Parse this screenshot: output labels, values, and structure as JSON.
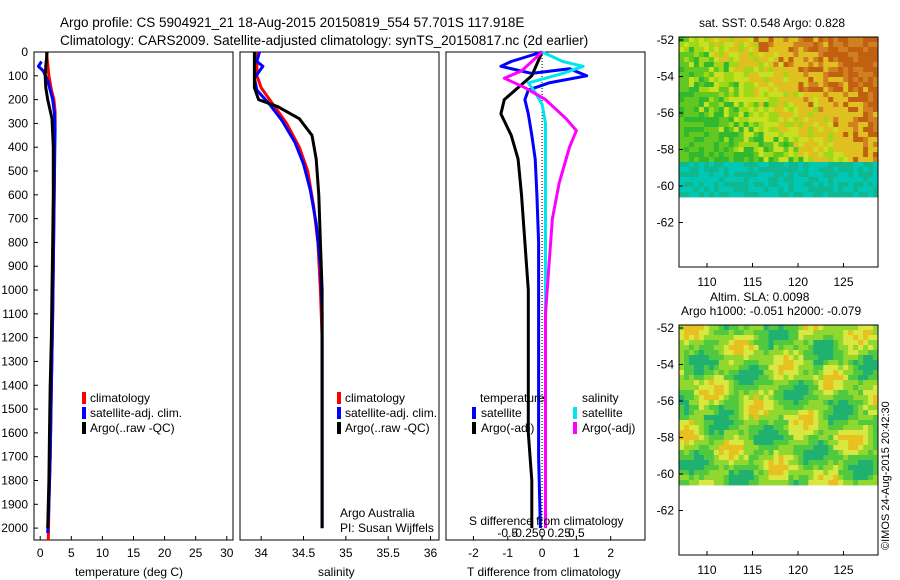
{
  "header": {
    "line1": "Argo profile: CS 5904921_21 18-Aug-2015 20150819_554 57.701S 117.918E",
    "line2": "Climatology: CARS2009. Satellite-adjusted climatology: synTS_20150817.nc (2d earlier)"
  },
  "footer": {
    "credit_line1": "Argo Australia",
    "credit_line2": "PI: Susan Wijffels",
    "stamp": "©IMOS 24-Aug-2015 20:42:30"
  },
  "colors": {
    "climatology": "#ff0000",
    "satellite_temperature": "#0000ff",
    "argo_temperature": "#000000",
    "satellite_salinity": "#00e5ee",
    "argo_salinity": "#ff00ff"
  },
  "legend_profiles": [
    {
      "label": "climatology",
      "color": "#ff0000"
    },
    {
      "label": "satellite-adj. clim.",
      "color": "#0000ff"
    },
    {
      "label": "Argo(..raw -QC)",
      "color": "#000000"
    }
  ],
  "legend_diff": {
    "temperature_title": "temperature",
    "salinity_title": "salinity",
    "temperature_items": [
      {
        "label": "satellite",
        "color": "#0000ff"
      },
      {
        "label": "Argo(-adj)",
        "color": "#000000"
      }
    ],
    "salinity_items": [
      {
        "label": "satellite",
        "color": "#00e5ee"
      },
      {
        "label": "Argo(-adj)",
        "color": "#ff00ff"
      }
    ]
  },
  "maps": {
    "sst": {
      "title": "sat. SST: 0.548 Argo: 0.828",
      "lat_ticks": [
        "-52",
        "-54",
        "-56",
        "-58",
        "-60",
        "-62"
      ],
      "lon_ticks": [
        "110",
        "115",
        "120",
        "125"
      ]
    },
    "sla": {
      "title_line1": "Altim. SLA: 0.0098",
      "title_line2": "Argo h1000: -0.051 h2000: -0.079",
      "lat_ticks": [
        "-52",
        "-54",
        "-56",
        "-58",
        "-60",
        "-62"
      ],
      "lon_ticks": [
        "110",
        "115",
        "120",
        "125"
      ]
    }
  },
  "chart_data": [
    {
      "type": "line",
      "xlabel": "temperature (deg C)",
      "ylim": [
        2050,
        0
      ],
      "xlim": [
        -1,
        31
      ],
      "y_ticks": [
        "0",
        "100",
        "200",
        "300",
        "400",
        "500",
        "600",
        "700",
        "800",
        "900",
        "1000",
        "1100",
        "1200",
        "1300",
        "1400",
        "1500",
        "1600",
        "1700",
        "1800",
        "1900",
        "2000"
      ],
      "x_ticks": [
        "0",
        "5",
        "10",
        "15",
        "20",
        "25",
        "30"
      ],
      "series": [
        {
          "name": "climatology",
          "color": "#ff0000",
          "points": [
            [
              1.0,
              0
            ],
            [
              1.2,
              50
            ],
            [
              1.4,
              100
            ],
            [
              1.8,
              160
            ],
            [
              2.2,
              200
            ],
            [
              2.4,
              250
            ],
            [
              2.4,
              300
            ],
            [
              2.3,
              400
            ],
            [
              2.3,
              500
            ],
            [
              2.2,
              700
            ],
            [
              2.1,
              900
            ],
            [
              2.0,
              1100
            ],
            [
              1.8,
              1400
            ],
            [
              1.6,
              1700
            ],
            [
              1.4,
              1900
            ],
            [
              1.3,
              2050
            ]
          ]
        },
        {
          "name": "satellite-adj. clim.",
          "color": "#0000ff",
          "points": [
            [
              0.2,
              40
            ],
            [
              -0.3,
              60
            ],
            [
              0.5,
              80
            ],
            [
              1.2,
              120
            ],
            [
              1.6,
              160
            ],
            [
              2.0,
              200
            ],
            [
              2.3,
              260
            ],
            [
              2.4,
              320
            ],
            [
              2.3,
              500
            ],
            [
              2.2,
              700
            ],
            [
              2.1,
              900
            ],
            [
              2.0,
              1100
            ],
            [
              1.8,
              1400
            ],
            [
              1.6,
              1700
            ],
            [
              1.4,
              1900
            ],
            [
              1.2,
              2020
            ]
          ]
        },
        {
          "name": "Argo(..raw -QC)",
          "color": "#000000",
          "points": [
            [
              1.1,
              0
            ],
            [
              0.9,
              60
            ],
            [
              0.8,
              100
            ],
            [
              0.9,
              150
            ],
            [
              1.2,
              200
            ],
            [
              1.9,
              280
            ],
            [
              2.1,
              400
            ],
            [
              2.1,
              600
            ],
            [
              2.0,
              800
            ],
            [
              1.9,
              1000
            ],
            [
              1.8,
              1200
            ],
            [
              1.6,
              1400
            ],
            [
              1.5,
              1600
            ],
            [
              1.4,
              1800
            ],
            [
              1.2,
              2000
            ]
          ]
        }
      ]
    },
    {
      "type": "line",
      "xlabel": "salinity",
      "ylim": [
        2050,
        0
      ],
      "xlim": [
        33.75,
        36.1
      ],
      "x_ticks": [
        "34",
        "34.5",
        "35",
        "35.5",
        "36"
      ],
      "series": [
        {
          "name": "climatology",
          "color": "#ff0000",
          "points": [
            [
              33.95,
              0
            ],
            [
              33.95,
              100
            ],
            [
              34.0,
              150
            ],
            [
              34.1,
              200
            ],
            [
              34.3,
              300
            ],
            [
              34.45,
              400
            ],
            [
              34.55,
              500
            ],
            [
              34.62,
              650
            ],
            [
              34.67,
              800
            ],
            [
              34.7,
              1000
            ],
            [
              34.72,
              1200
            ],
            [
              34.72,
              1500
            ],
            [
              34.72,
              1800
            ],
            [
              34.72,
              2000
            ]
          ]
        },
        {
          "name": "satellite-adj. clim.",
          "color": "#0000ff",
          "points": [
            [
              33.98,
              0
            ],
            [
              33.95,
              40
            ],
            [
              34.02,
              60
            ],
            [
              33.98,
              80
            ],
            [
              33.92,
              110
            ],
            [
              33.95,
              160
            ],
            [
              34.1,
              220
            ],
            [
              34.25,
              290
            ],
            [
              34.4,
              380
            ],
            [
              34.5,
              470
            ],
            [
              34.58,
              580
            ],
            [
              34.65,
              720
            ],
            [
              34.7,
              900
            ],
            [
              34.72,
              1100
            ],
            [
              34.72,
              1400
            ],
            [
              34.72,
              1700
            ],
            [
              34.72,
              2000
            ]
          ]
        },
        {
          "name": "Argo(..raw -QC)",
          "color": "#000000",
          "points": [
            [
              33.92,
              0
            ],
            [
              33.92,
              100
            ],
            [
              33.92,
              150
            ],
            [
              33.97,
              200
            ],
            [
              34.2,
              230
            ],
            [
              34.45,
              280
            ],
            [
              34.6,
              350
            ],
            [
              34.65,
              450
            ],
            [
              34.68,
              600
            ],
            [
              34.7,
              800
            ],
            [
              34.72,
              1000
            ],
            [
              34.72,
              1300
            ],
            [
              34.72,
              1700
            ],
            [
              34.72,
              2000
            ]
          ]
        }
      ]
    },
    {
      "type": "line",
      "xlabel": "T difference from climatology",
      "ylim": [
        2050,
        0
      ],
      "xlim": [
        -2.8,
        3.0
      ],
      "x_ticks": [
        "-2",
        "-1",
        "0",
        "1",
        "2"
      ],
      "x2label": "S difference from climatology",
      "x2_ticks": [
        "-0.5",
        "-0.25",
        "0",
        "0.25",
        "0.5"
      ],
      "series": [
        {
          "name": "temperature satellite",
          "color": "#0000ff",
          "points": [
            [
              0,
              0
            ],
            [
              -0.9,
              40
            ],
            [
              -1.2,
              60
            ],
            [
              -0.3,
              90
            ],
            [
              0.8,
              70
            ],
            [
              1.3,
              100
            ],
            [
              0.2,
              130
            ],
            [
              -0.4,
              160
            ],
            [
              -0.5,
              200
            ],
            [
              -0.4,
              260
            ],
            [
              -0.3,
              350
            ],
            [
              -0.2,
              450
            ],
            [
              -0.15,
              600
            ],
            [
              -0.1,
              800
            ],
            [
              -0.1,
              1100
            ],
            [
              -0.1,
              1400
            ],
            [
              -0.1,
              1700
            ],
            [
              -0.05,
              2000
            ]
          ]
        },
        {
          "name": "temperature Argo(-adj)",
          "color": "#000000",
          "points": [
            [
              0,
              0
            ],
            [
              -0.3,
              100
            ],
            [
              -1.1,
              200
            ],
            [
              -1.2,
              260
            ],
            [
              -0.9,
              350
            ],
            [
              -0.7,
              450
            ],
            [
              -0.6,
              600
            ],
            [
              -0.5,
              800
            ],
            [
              -0.4,
              1000
            ],
            [
              -0.4,
              1200
            ],
            [
              -0.4,
              1400
            ],
            [
              -0.4,
              1600
            ],
            [
              -0.3,
              1800
            ],
            [
              -0.3,
              2000
            ]
          ]
        },
        {
          "name": "salinity satellite",
          "color": "#00e5ee",
          "points": [
            [
              0,
              0
            ],
            [
              0.6,
              40
            ],
            [
              1.2,
              60
            ],
            [
              0.6,
              90
            ],
            [
              -0.4,
              130
            ],
            [
              -0.2,
              170
            ],
            [
              0,
              220
            ],
            [
              0.1,
              300
            ],
            [
              0.1,
              500
            ],
            [
              0.1,
              800
            ],
            [
              0.1,
              1100
            ],
            [
              0.1,
              1400
            ],
            [
              0.1,
              1700
            ],
            [
              0.1,
              2000
            ]
          ]
        },
        {
          "name": "salinity Argo(-adj)",
          "color": "#ff00ff",
          "points": [
            [
              0,
              0
            ],
            [
              -0.6,
              80
            ],
            [
              -1.1,
              110
            ],
            [
              -0.5,
              150
            ],
            [
              0.1,
              200
            ],
            [
              0.7,
              280
            ],
            [
              1.0,
              330
            ],
            [
              0.8,
              400
            ],
            [
              0.5,
              550
            ],
            [
              0.3,
              700
            ],
            [
              0.2,
              900
            ],
            [
              0.1,
              1100
            ],
            [
              0.1,
              1400
            ],
            [
              0.1,
              1700
            ],
            [
              0.1,
              2000
            ]
          ]
        }
      ]
    }
  ]
}
